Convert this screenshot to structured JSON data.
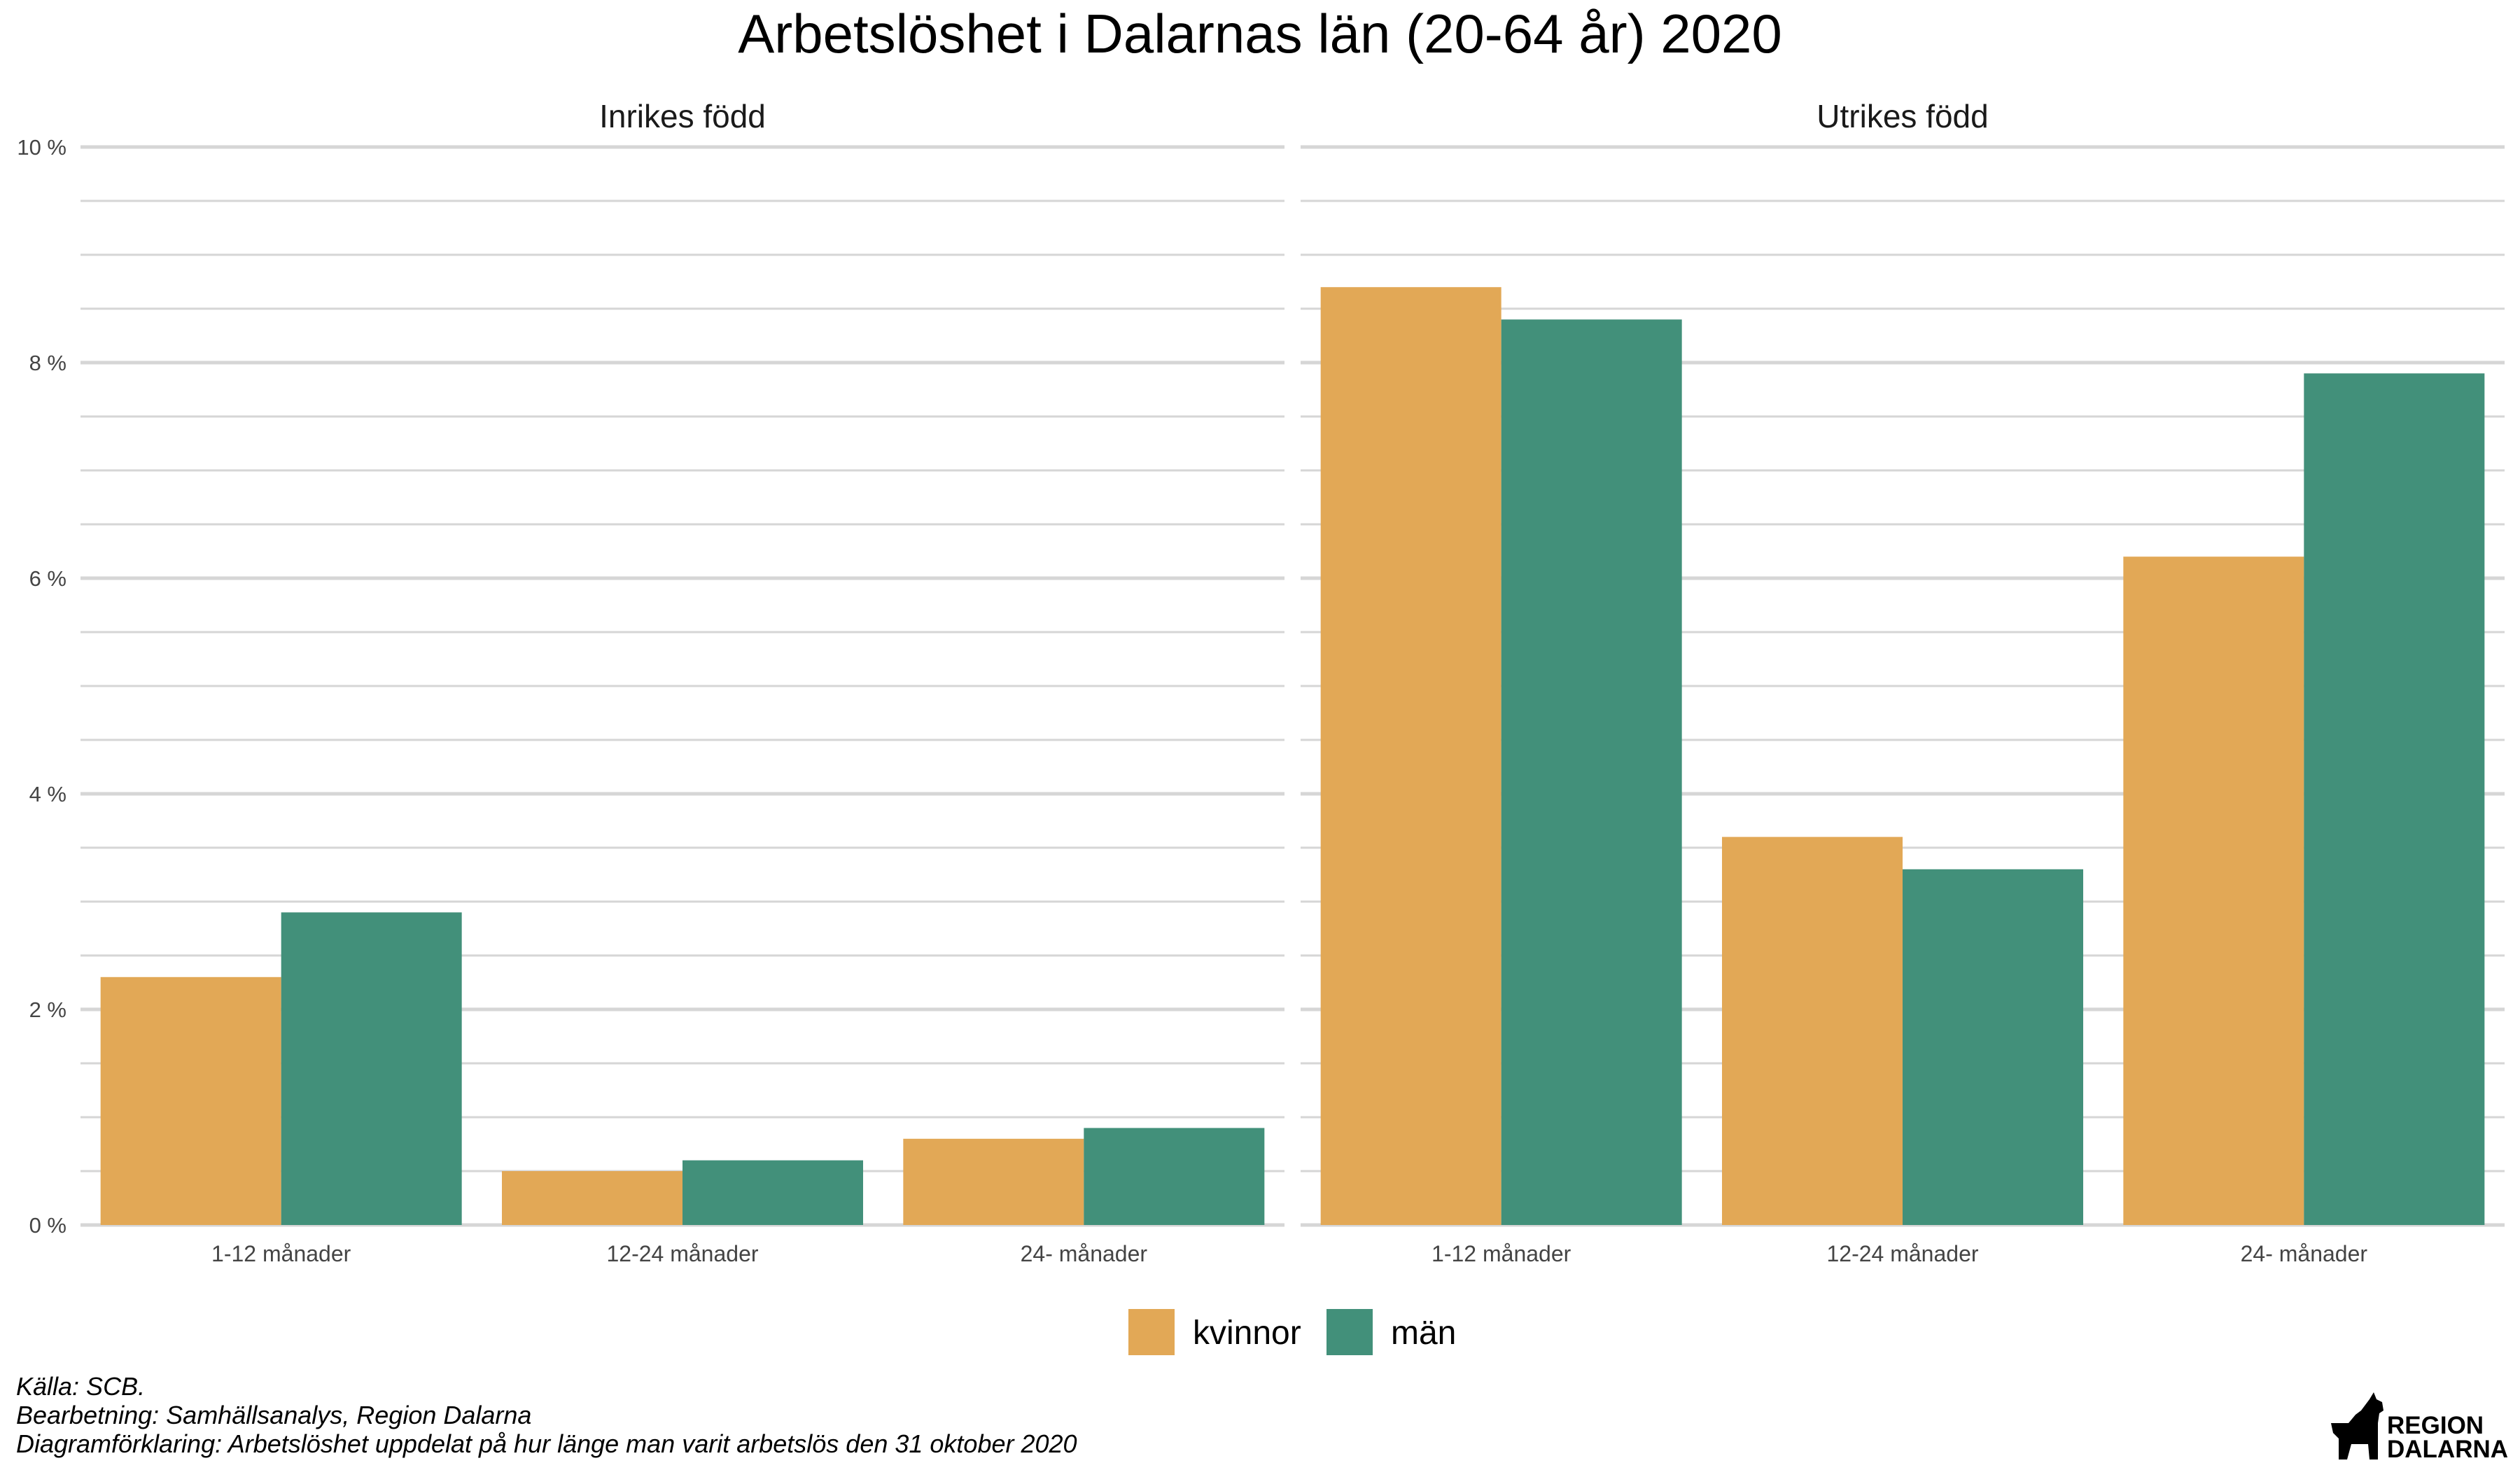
{
  "chart_data": {
    "type": "bar",
    "title": "Arbetslöshet i Dalarnas län (20-64 år) 2020",
    "categories": [
      "1-12 månader",
      "12-24 månader",
      "24- månader"
    ],
    "ylim": [
      0,
      10
    ],
    "yticks": [
      "0 %",
      "2 %",
      "4 %",
      "6 %",
      "8 %",
      "10 %"
    ],
    "grid": true,
    "legend_position": "bottom",
    "panels": [
      {
        "title": "Inrikes född",
        "series": [
          {
            "name": "kvinnor",
            "values": [
              2.3,
              0.5,
              0.8
            ]
          },
          {
            "name": "män",
            "values": [
              2.9,
              0.6,
              0.9
            ]
          }
        ]
      },
      {
        "title": "Utrikes född",
        "series": [
          {
            "name": "kvinnor",
            "values": [
              8.7,
              3.6,
              6.2
            ]
          },
          {
            "name": "män",
            "values": [
              8.4,
              3.3,
              7.9
            ]
          }
        ]
      }
    ],
    "colors": {
      "kvinnor": "#E2A856",
      "män": "#42907A"
    }
  },
  "caption": {
    "source": "Källa: SCB.",
    "processing": "Bearbetning: Samhällsanalys, Region Dalarna",
    "explanation": "Diagramförklaring: Arbetslöshet uppdelat på hur länge man varit arbetslös den 31 oktober 2020"
  },
  "logo": {
    "line1": "REGION",
    "line2": "DALARNA"
  }
}
